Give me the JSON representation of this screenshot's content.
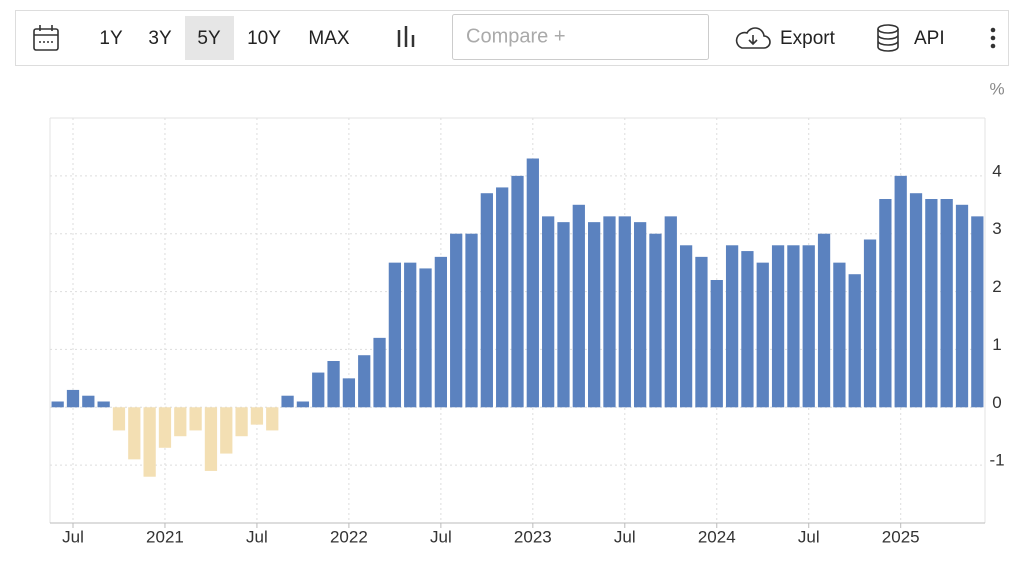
{
  "toolbar": {
    "ranges": [
      "1Y",
      "3Y",
      "5Y",
      "10Y",
      "MAX"
    ],
    "selected": "5Y",
    "compare": "Compare +",
    "export": "Export",
    "api": "API"
  },
  "chart_data": {
    "type": "bar",
    "unit": "%",
    "categories": [
      null,
      "Jul",
      null,
      null,
      null,
      null,
      null,
      "2021",
      null,
      null,
      null,
      null,
      null,
      "Jul",
      null,
      null,
      null,
      null,
      null,
      "2022",
      null,
      null,
      null,
      null,
      null,
      "Jul",
      null,
      null,
      null,
      null,
      null,
      "2023",
      null,
      null,
      null,
      null,
      null,
      "Jul",
      null,
      null,
      null,
      null,
      null,
      "2024",
      null,
      null,
      null,
      null,
      null,
      "Jul",
      null,
      null,
      null,
      null,
      null,
      "2025",
      null,
      null,
      null,
      null,
      null
    ],
    "values": [
      0.1,
      0.3,
      0.2,
      0.1,
      -0.4,
      -0.9,
      -1.2,
      -0.7,
      -0.5,
      -0.4,
      -1.1,
      -0.8,
      -0.5,
      -0.3,
      -0.4,
      0.2,
      0.1,
      0.6,
      0.8,
      0.5,
      0.9,
      1.2,
      2.5,
      2.5,
      2.4,
      2.6,
      3.0,
      3.0,
      3.7,
      3.8,
      4.0,
      4.3,
      3.3,
      3.2,
      3.5,
      3.2,
      3.3,
      3.3,
      3.2,
      3.0,
      3.3,
      2.8,
      2.6,
      2.2,
      2.8,
      2.7,
      2.5,
      2.8,
      2.8,
      2.8,
      3.0,
      2.5,
      2.3,
      2.9,
      3.6,
      4.0,
      3.7,
      3.6,
      3.6,
      3.5,
      3.3
    ],
    "color": "#5b82bf",
    "negative_color": "#f3dfb3",
    "ylim": [
      -2,
      5
    ],
    "yticks": [
      -1,
      0,
      1,
      2,
      3,
      4
    ],
    "grid": true
  }
}
